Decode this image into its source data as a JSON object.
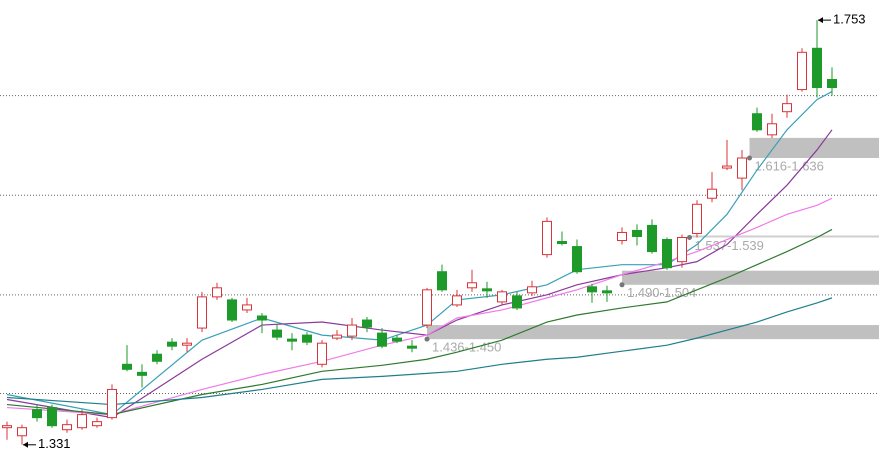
{
  "chart_data": {
    "type": "candlestick",
    "up_color": "#d9343a",
    "down_color": "#1e9a2a",
    "ylim": [
      1.3,
      1.773
    ],
    "hlines": [
      1.678,
      1.579,
      1.48,
      1.382
    ],
    "open": [
      1.348,
      1.34,
      1.366,
      1.368,
      1.346,
      1.348,
      1.35,
      1.358,
      1.411,
      1.403,
      1.421,
      1.433,
      1.43,
      1.447,
      1.478,
      1.475,
      1.465,
      1.459,
      1.445,
      1.436,
      1.44,
      1.411,
      1.437,
      1.439,
      1.455,
      1.442,
      1.437,
      1.429,
      1.45,
      1.503,
      1.47,
      1.487,
      1.486,
      1.473,
      1.479,
      1.482,
      1.52,
      1.533,
      1.528,
      1.488,
      1.484,
      1.534,
      1.544,
      1.549,
      1.535,
      1.513,
      1.541,
      1.576,
      1.606,
      1.596,
      1.66,
      1.639,
      1.662,
      1.684,
      1.725,
      1.694
    ],
    "high": [
      1.354,
      1.351,
      1.371,
      1.371,
      1.356,
      1.366,
      1.358,
      1.391,
      1.43,
      1.411,
      1.425,
      1.437,
      1.437,
      1.483,
      1.492,
      1.477,
      1.477,
      1.462,
      1.45,
      1.442,
      1.443,
      1.435,
      1.445,
      1.457,
      1.458,
      1.447,
      1.44,
      1.435,
      1.487,
      1.51,
      1.485,
      1.505,
      1.493,
      1.485,
      1.483,
      1.494,
      1.557,
      1.543,
      1.535,
      1.491,
      1.489,
      1.547,
      1.55,
      1.555,
      1.537,
      1.54,
      1.574,
      1.602,
      1.634,
      1.624,
      1.666,
      1.66,
      1.679,
      1.725,
      1.753,
      1.706
    ],
    "low": [
      1.336,
      1.331,
      1.354,
      1.348,
      1.343,
      1.346,
      1.348,
      1.356,
      1.404,
      1.388,
      1.411,
      1.425,
      1.423,
      1.443,
      1.475,
      1.453,
      1.462,
      1.442,
      1.435,
      1.425,
      1.43,
      1.408,
      1.435,
      1.435,
      1.443,
      1.427,
      1.432,
      1.423,
      1.447,
      1.483,
      1.468,
      1.483,
      1.477,
      1.47,
      1.465,
      1.479,
      1.517,
      1.529,
      1.501,
      1.472,
      1.473,
      1.53,
      1.529,
      1.521,
      1.505,
      1.507,
      1.537,
      1.572,
      1.604,
      1.584,
      1.642,
      1.636,
      1.656,
      1.682,
      1.676,
      1.678
    ],
    "close": [
      1.35,
      1.348,
      1.358,
      1.35,
      1.351,
      1.361,
      1.354,
      1.386,
      1.406,
      1.4,
      1.414,
      1.429,
      1.432,
      1.478,
      1.487,
      1.455,
      1.47,
      1.455,
      1.438,
      1.434,
      1.433,
      1.432,
      1.44,
      1.45,
      1.448,
      1.429,
      1.434,
      1.427,
      1.485,
      1.485,
      1.479,
      1.492,
      1.484,
      1.483,
      1.467,
      1.488,
      1.553,
      1.531,
      1.503,
      1.483,
      1.482,
      1.542,
      1.538,
      1.523,
      1.507,
      1.537,
      1.57,
      1.585,
      1.608,
      1.616,
      1.644,
      1.65,
      1.67,
      1.721,
      1.686,
      1.686
    ],
    "lines": [
      {
        "color": "#3aa0b8",
        "x": [
          0,
          7,
          13,
          17,
          21,
          25,
          28,
          30,
          33,
          36,
          38,
          41,
          44,
          46,
          48,
          50,
          52,
          54,
          55
        ],
        "values": [
          1.381,
          1.361,
          1.435,
          1.457,
          1.44,
          1.435,
          1.45,
          1.475,
          1.48,
          1.49,
          1.505,
          1.51,
          1.51,
          1.53,
          1.56,
          1.604,
          1.644,
          1.674,
          1.682
        ]
      },
      {
        "color": "#8a3a9a",
        "x": [
          0,
          7,
          13,
          17,
          21,
          25,
          28,
          30,
          33,
          36,
          38,
          41,
          44,
          46,
          48,
          50,
          52,
          54,
          55
        ],
        "values": [
          1.376,
          1.358,
          1.416,
          1.45,
          1.453,
          1.445,
          1.44,
          1.455,
          1.47,
          1.48,
          1.49,
          1.5,
          1.507,
          1.513,
          1.53,
          1.56,
          1.589,
          1.624,
          1.644
        ]
      },
      {
        "color": "#f07ae8",
        "x": [
          0,
          7,
          13,
          17,
          21,
          25,
          28,
          30,
          33,
          36,
          38,
          41,
          44,
          46,
          48,
          50,
          52,
          54,
          55
        ],
        "values": [
          1.368,
          1.361,
          1.386,
          1.401,
          1.414,
          1.43,
          1.44,
          1.457,
          1.465,
          1.477,
          1.485,
          1.5,
          1.513,
          1.523,
          1.535,
          1.547,
          1.56,
          1.569,
          1.576
        ]
      },
      {
        "color": "#2e7a2e",
        "x": [
          0,
          7,
          13,
          17,
          21,
          25,
          28,
          30,
          33,
          36,
          38,
          41,
          44,
          46,
          48,
          50,
          52,
          54,
          55
        ],
        "values": [
          1.371,
          1.361,
          1.381,
          1.391,
          1.404,
          1.41,
          1.416,
          1.423,
          1.435,
          1.453,
          1.46,
          1.467,
          1.473,
          1.485,
          1.497,
          1.51,
          1.523,
          1.537,
          1.545
        ]
      },
      {
        "color": "#1f7f8a",
        "x": [
          0,
          7,
          13,
          17,
          21,
          25,
          28,
          30,
          33,
          36,
          38,
          41,
          44,
          46,
          48,
          50,
          52,
          54,
          55
        ],
        "values": [
          1.378,
          1.371,
          1.378,
          1.386,
          1.396,
          1.399,
          1.402,
          1.404,
          1.411,
          1.416,
          1.418,
          1.424,
          1.43,
          1.437,
          1.445,
          1.453,
          1.463,
          1.472,
          1.477
        ]
      }
    ],
    "zones": [
      {
        "label": "1.616-1.636",
        "low": 1.616,
        "high": 1.636,
        "from": 49.5
      },
      {
        "label": "1.537-1.539",
        "low": 1.537,
        "high": 1.539,
        "from": 45.5
      },
      {
        "label": "1.490-1.504",
        "low": 1.49,
        "high": 1.504,
        "from": 41
      },
      {
        "label": "1.436-1.450",
        "low": 1.436,
        "high": 1.45,
        "from": 28
      }
    ],
    "annotations": [
      {
        "label": "1.753",
        "value": 1.753,
        "index": 54
      },
      {
        "label": "1.331",
        "value": 1.331,
        "index": 1
      }
    ]
  }
}
